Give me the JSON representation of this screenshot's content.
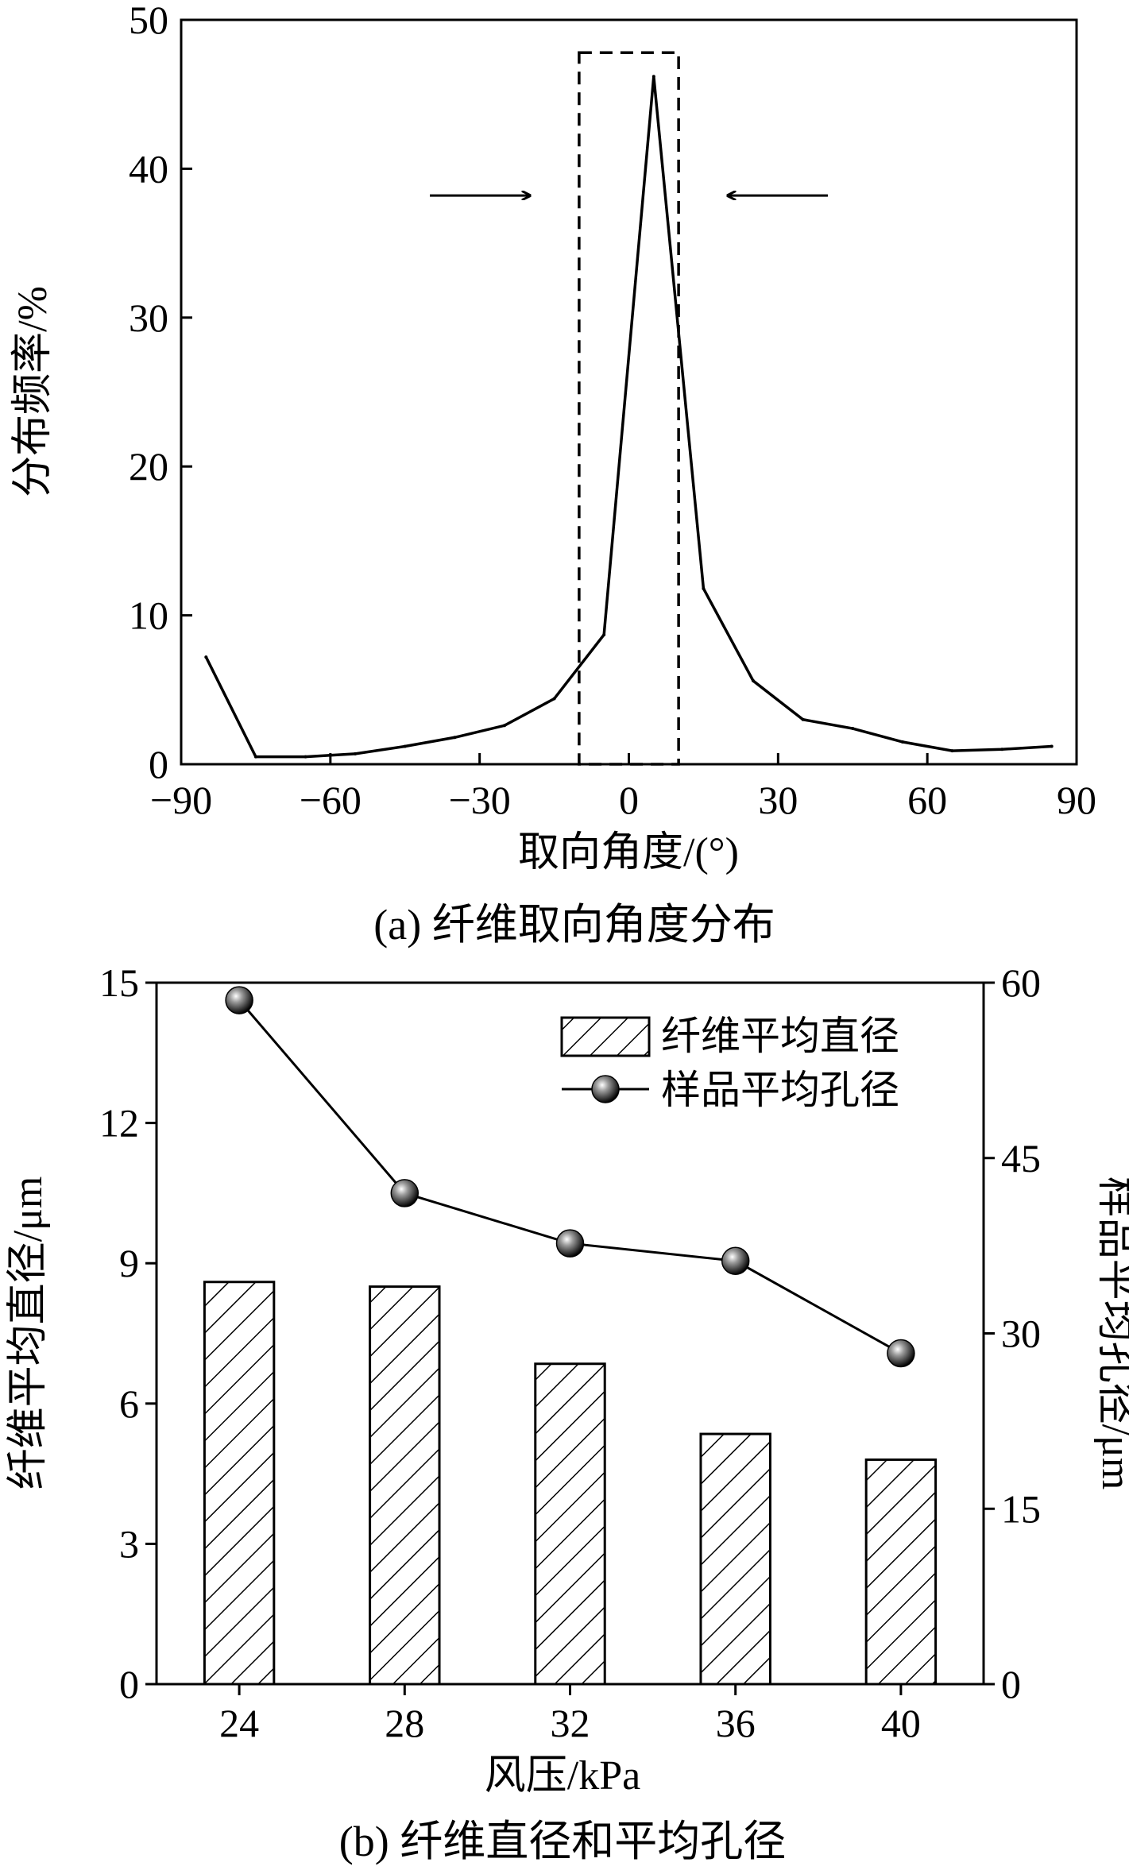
{
  "chart_data": [
    {
      "type": "line",
      "title": "",
      "caption": "(a) 纤维取向角度分布",
      "xlabel": "取向角度/(°)",
      "ylabel": "分布频率/%",
      "xlim": [
        -90,
        90
      ],
      "ylim": [
        0,
        50
      ],
      "xticks": [
        -90,
        -60,
        -30,
        0,
        30,
        60,
        90
      ],
      "xtick_labels": [
        "−90",
        "−60",
        "−30",
        "0",
        "30",
        "60",
        "90"
      ],
      "yticks": [
        0,
        10,
        20,
        30,
        40,
        50
      ],
      "ytick_labels": [
        "0",
        "10",
        "20",
        "30",
        "40",
        "50"
      ],
      "series": [
        {
          "name": "分布频率",
          "x": [
            -85,
            -75,
            -65,
            -55,
            -45,
            -35,
            -25,
            -15,
            -5,
            5,
            15,
            25,
            35,
            45,
            55,
            65,
            75,
            85
          ],
          "y": [
            7.2,
            0.5,
            0.5,
            0.7,
            1.2,
            1.8,
            2.6,
            4.4,
            8.7,
            46.2,
            11.8,
            5.6,
            3.0,
            2.4,
            1.5,
            0.9,
            1.0,
            1.2
          ]
        }
      ],
      "annotations": {
        "dashed_box": {
          "x_range": [
            -10,
            10
          ],
          "y_range": [
            0,
            47.8
          ]
        },
        "arrows": [
          {
            "from": [
              -40,
              38.2
            ],
            "to": [
              -20,
              38.2
            ],
            "direction": "right"
          },
          {
            "from": [
              40,
              38.2
            ],
            "to": [
              20,
              38.2
            ],
            "direction": "left"
          }
        ]
      }
    },
    {
      "type": "bar",
      "title": "",
      "caption": "(b) 纤维直径和平均孔径",
      "xlabel": "风压/kPa",
      "ylabel": "纤维平均直径/μm",
      "y2label": "样品平均孔径/μm",
      "categories": [
        "24",
        "28",
        "32",
        "36",
        "40"
      ],
      "ylim": [
        0,
        15
      ],
      "yticks": [
        0,
        3,
        6,
        9,
        12,
        15
      ],
      "ytick_labels": [
        "0",
        "3",
        "6",
        "9",
        "12",
        "15"
      ],
      "y2lim": [
        0,
        60
      ],
      "y2ticks": [
        0,
        15,
        30,
        45,
        60
      ],
      "y2tick_labels": [
        "0",
        "15",
        "30",
        "45",
        "60"
      ],
      "legend_position": "top-right",
      "series": [
        {
          "name": "纤维平均直径",
          "type": "bar",
          "axis": "left",
          "values": [
            8.6,
            8.5,
            6.85,
            5.35,
            4.8
          ]
        },
        {
          "name": "样品平均孔径",
          "type": "line",
          "axis": "right",
          "values": [
            58.5,
            42.0,
            37.7,
            36.2,
            28.3
          ]
        }
      ]
    }
  ]
}
